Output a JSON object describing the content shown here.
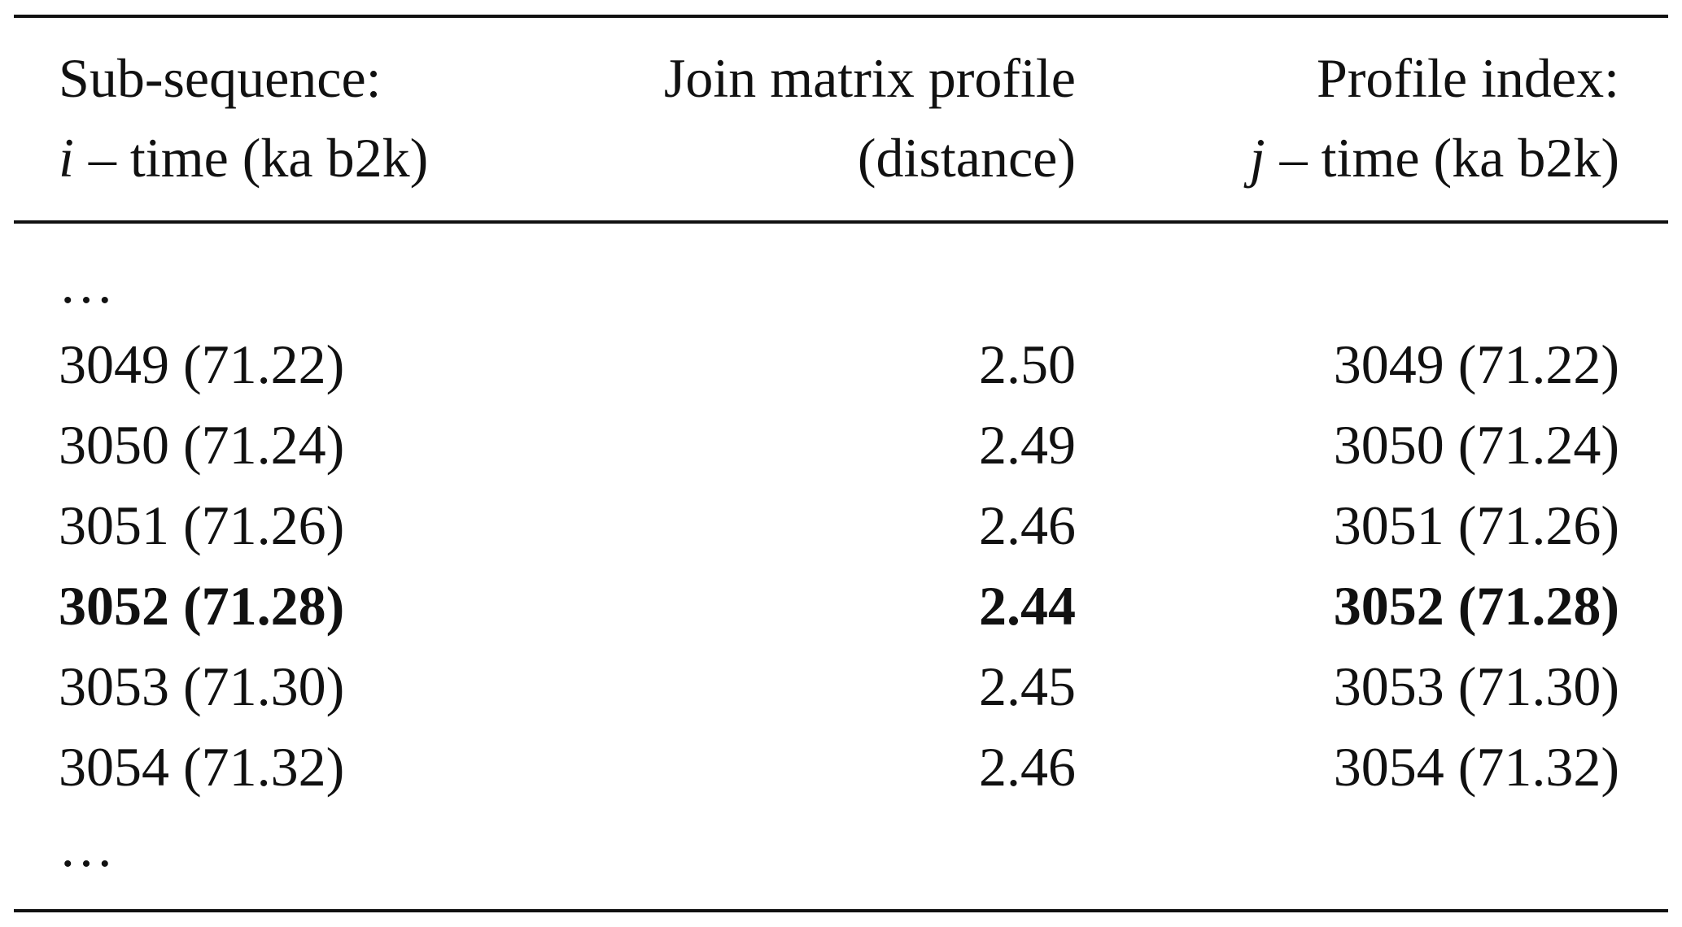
{
  "table": {
    "header": [
      {
        "line1": "Sub-sequence:",
        "var": "i",
        "line2": "– time (ka b2k)"
      },
      {
        "line1": "Join matrix profile",
        "line2": "(distance)"
      },
      {
        "line1": "Profile index:",
        "var": "j",
        "line2": "– time (ka b2k)"
      }
    ],
    "rows": [
      {
        "cells": [
          "…"
        ]
      },
      {
        "cells": [
          "3049 (71.22)",
          "2.50",
          "3049 (71.22)"
        ]
      },
      {
        "cells": [
          "3050 (71.24)",
          "2.49",
          "3050 (71.24)"
        ]
      },
      {
        "cells": [
          "3051 (71.26)",
          "2.46",
          "3051 (71.26)"
        ]
      },
      {
        "cells": [
          "3052 (71.28)",
          "2.44",
          "3052 (71.28)"
        ],
        "bold": true
      },
      {
        "cells": [
          "3053 (71.30)",
          "2.45",
          "3053 (71.30)"
        ]
      },
      {
        "cells": [
          "3054 (71.32)",
          "2.46",
          "3054 (71.32)"
        ]
      },
      {
        "cells": [
          "…"
        ]
      }
    ]
  }
}
